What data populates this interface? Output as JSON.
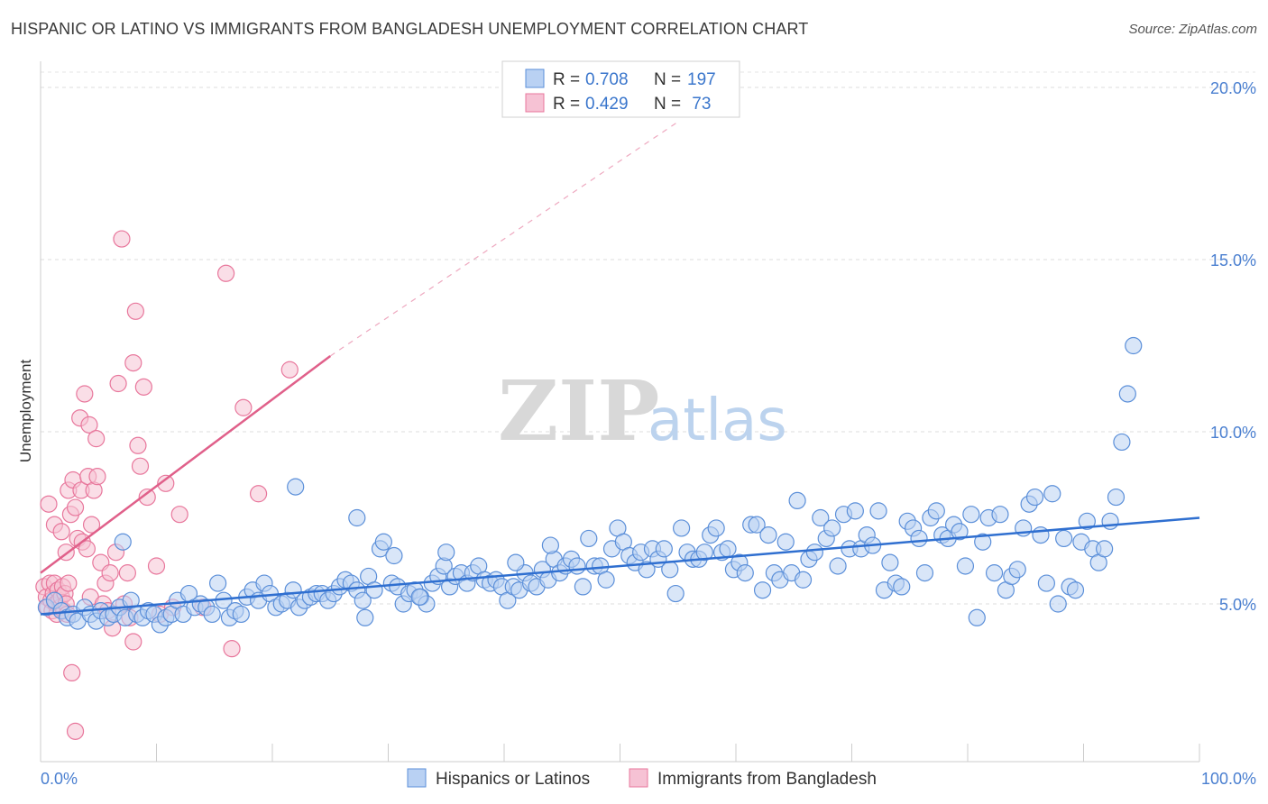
{
  "title": "HISPANIC OR LATINO VS IMMIGRANTS FROM BANGLADESH UNEMPLOYMENT CORRELATION CHART",
  "source": "Source: ZipAtlas.com",
  "watermark": {
    "zip": "ZIP",
    "atlas": "atlas"
  },
  "colors": {
    "blue": "#5b8fd9",
    "blue_fill": "#b9d1f3",
    "blue_line": "#2f6fd0",
    "pink": "#e8779c",
    "pink_fill": "#f6c2d4",
    "pink_line": "#e0608a"
  },
  "legend": {
    "r_label": "R =",
    "n_label": "N =",
    "rows": [
      {
        "r": "0.708",
        "n": "197"
      },
      {
        "r": "0.429",
        "n": " 73"
      }
    ]
  },
  "chart_data": {
    "type": "scatter",
    "title": "HISPANIC OR LATINO VS IMMIGRANTS FROM BANGLADESH UNEMPLOYMENT CORRELATION CHART",
    "xlabel": "",
    "ylabel": "Unemployment",
    "xlim": [
      0,
      100
    ],
    "ylim": [
      0,
      21
    ],
    "x_tick_labels": [
      "0.0%",
      "100.0%"
    ],
    "y_ticks": [
      5,
      10,
      15,
      20
    ],
    "y_tick_labels": [
      "5.0%",
      "10.0%",
      "15.0%",
      "20.0%"
    ],
    "grid": "horizontal dashed",
    "legend_position": "top-center",
    "series": [
      {
        "name": "Hispanics or Latinos",
        "color": "#5b8fd9",
        "trend": {
          "x": [
            0,
            100
          ],
          "y": [
            4.7,
            7.5
          ]
        },
        "points": [
          [
            0.5,
            4.9
          ],
          [
            1.2,
            5.1
          ],
          [
            1.8,
            4.8
          ],
          [
            2.3,
            4.6
          ],
          [
            2.8,
            4.7
          ],
          [
            3.2,
            4.5
          ],
          [
            3.8,
            4.9
          ],
          [
            4.3,
            4.7
          ],
          [
            4.8,
            4.5
          ],
          [
            5.2,
            4.8
          ],
          [
            5.8,
            4.6
          ],
          [
            6.3,
            4.7
          ],
          [
            6.8,
            4.9
          ],
          [
            7.3,
            4.6
          ],
          [
            7.8,
            5.1
          ],
          [
            8.3,
            4.7
          ],
          [
            8.8,
            4.6
          ],
          [
            9.3,
            4.8
          ],
          [
            9.8,
            4.7
          ],
          [
            10.3,
            4.4
          ],
          [
            10.8,
            4.6
          ],
          [
            11.3,
            4.7
          ],
          [
            11.8,
            5.1
          ],
          [
            12.3,
            4.7
          ],
          [
            12.8,
            5.3
          ],
          [
            13.3,
            4.9
          ],
          [
            13.8,
            5.0
          ],
          [
            14.3,
            4.9
          ],
          [
            14.8,
            4.7
          ],
          [
            15.3,
            5.6
          ],
          [
            15.8,
            5.1
          ],
          [
            16.3,
            4.6
          ],
          [
            16.8,
            4.8
          ],
          [
            17.3,
            4.7
          ],
          [
            17.8,
            5.2
          ],
          [
            18.3,
            5.4
          ],
          [
            18.8,
            5.1
          ],
          [
            19.3,
            5.6
          ],
          [
            19.8,
            5.3
          ],
          [
            20.3,
            4.9
          ],
          [
            20.8,
            5.0
          ],
          [
            21.3,
            5.1
          ],
          [
            21.8,
            5.4
          ],
          [
            22.3,
            4.9
          ],
          [
            22.8,
            5.1
          ],
          [
            23.3,
            5.2
          ],
          [
            23.8,
            5.3
          ],
          [
            24.3,
            5.3
          ],
          [
            24.8,
            5.1
          ],
          [
            25.3,
            5.3
          ],
          [
            25.8,
            5.5
          ],
          [
            26.3,
            5.7
          ],
          [
            26.8,
            5.6
          ],
          [
            27.3,
            5.4
          ],
          [
            27.8,
            5.1
          ],
          [
            28.3,
            5.8
          ],
          [
            28.8,
            5.4
          ],
          [
            29.3,
            6.6
          ],
          [
            29.6,
            6.8
          ],
          [
            30.3,
            5.6
          ],
          [
            30.8,
            5.5
          ],
          [
            31.3,
            5.0
          ],
          [
            31.8,
            5.3
          ],
          [
            32.3,
            5.4
          ],
          [
            32.8,
            5.2
          ],
          [
            33.3,
            5.0
          ],
          [
            33.8,
            5.6
          ],
          [
            34.3,
            5.8
          ],
          [
            34.8,
            6.1
          ],
          [
            35.3,
            5.5
          ],
          [
            35.8,
            5.8
          ],
          [
            36.3,
            5.9
          ],
          [
            36.8,
            5.6
          ],
          [
            37.3,
            5.9
          ],
          [
            37.8,
            6.1
          ],
          [
            38.3,
            5.7
          ],
          [
            38.8,
            5.6
          ],
          [
            39.3,
            5.7
          ],
          [
            39.8,
            5.5
          ],
          [
            40.3,
            5.1
          ],
          [
            40.8,
            5.5
          ],
          [
            41.3,
            5.4
          ],
          [
            41.8,
            5.9
          ],
          [
            42.3,
            5.6
          ],
          [
            42.8,
            5.5
          ],
          [
            43.3,
            6.0
          ],
          [
            43.8,
            5.7
          ],
          [
            44.3,
            6.3
          ],
          [
            44.8,
            5.9
          ],
          [
            45.3,
            6.1
          ],
          [
            45.8,
            6.3
          ],
          [
            46.3,
            6.1
          ],
          [
            46.8,
            5.5
          ],
          [
            47.3,
            6.9
          ],
          [
            47.8,
            6.1
          ],
          [
            48.3,
            6.1
          ],
          [
            48.8,
            5.7
          ],
          [
            49.3,
            6.6
          ],
          [
            49.8,
            7.2
          ],
          [
            50.3,
            6.8
          ],
          [
            50.8,
            6.4
          ],
          [
            51.3,
            6.2
          ],
          [
            51.8,
            6.5
          ],
          [
            52.3,
            6.0
          ],
          [
            52.8,
            6.6
          ],
          [
            53.3,
            6.3
          ],
          [
            53.8,
            6.6
          ],
          [
            54.3,
            6.0
          ],
          [
            54.8,
            5.3
          ],
          [
            55.3,
            7.2
          ],
          [
            55.8,
            6.5
          ],
          [
            56.3,
            6.3
          ],
          [
            56.8,
            6.3
          ],
          [
            57.3,
            6.5
          ],
          [
            57.8,
            7.0
          ],
          [
            58.3,
            7.2
          ],
          [
            58.8,
            6.5
          ],
          [
            59.3,
            6.6
          ],
          [
            59.8,
            6.0
          ],
          [
            60.3,
            6.2
          ],
          [
            60.8,
            5.9
          ],
          [
            61.3,
            7.3
          ],
          [
            61.8,
            7.3
          ],
          [
            62.3,
            5.4
          ],
          [
            62.8,
            7.0
          ],
          [
            63.3,
            5.9
          ],
          [
            63.8,
            5.7
          ],
          [
            64.3,
            6.8
          ],
          [
            64.8,
            5.9
          ],
          [
            65.3,
            8.0
          ],
          [
            65.8,
            5.7
          ],
          [
            66.3,
            6.3
          ],
          [
            66.8,
            6.5
          ],
          [
            67.3,
            7.5
          ],
          [
            67.8,
            6.9
          ],
          [
            68.3,
            7.2
          ],
          [
            68.8,
            6.1
          ],
          [
            69.3,
            7.6
          ],
          [
            69.8,
            6.6
          ],
          [
            70.3,
            7.7
          ],
          [
            70.8,
            6.6
          ],
          [
            71.3,
            7.0
          ],
          [
            71.8,
            6.7
          ],
          [
            72.3,
            7.7
          ],
          [
            72.8,
            5.4
          ],
          [
            73.3,
            6.2
          ],
          [
            73.8,
            5.6
          ],
          [
            74.3,
            5.5
          ],
          [
            74.8,
            7.4
          ],
          [
            75.3,
            7.2
          ],
          [
            75.8,
            6.9
          ],
          [
            76.3,
            5.9
          ],
          [
            76.8,
            7.5
          ],
          [
            77.3,
            7.7
          ],
          [
            77.8,
            7.0
          ],
          [
            78.3,
            6.9
          ],
          [
            78.8,
            7.3
          ],
          [
            79.3,
            7.1
          ],
          [
            79.8,
            6.1
          ],
          [
            80.3,
            7.6
          ],
          [
            80.8,
            4.6
          ],
          [
            81.3,
            6.8
          ],
          [
            81.8,
            7.5
          ],
          [
            82.3,
            5.9
          ],
          [
            82.8,
            7.6
          ],
          [
            83.3,
            5.4
          ],
          [
            83.8,
            5.8
          ],
          [
            84.3,
            6.0
          ],
          [
            84.8,
            7.2
          ],
          [
            85.3,
            7.9
          ],
          [
            85.8,
            8.1
          ],
          [
            86.3,
            7.0
          ],
          [
            86.8,
            5.6
          ],
          [
            87.3,
            8.2
          ],
          [
            87.8,
            5.0
          ],
          [
            88.3,
            6.9
          ],
          [
            88.8,
            5.5
          ],
          [
            89.3,
            5.4
          ],
          [
            89.8,
            6.8
          ],
          [
            90.3,
            7.4
          ],
          [
            90.8,
            6.6
          ],
          [
            91.3,
            6.2
          ],
          [
            91.8,
            6.6
          ],
          [
            92.3,
            7.4
          ],
          [
            92.8,
            8.1
          ],
          [
            93.3,
            9.7
          ],
          [
            93.8,
            11.1
          ],
          [
            94.3,
            12.5
          ],
          [
            7.1,
            6.8
          ],
          [
            22.0,
            8.4
          ],
          [
            27.3,
            7.5
          ],
          [
            28.0,
            4.6
          ],
          [
            30.5,
            6.4
          ],
          [
            32.7,
            5.2
          ],
          [
            35.0,
            6.5
          ],
          [
            41.0,
            6.2
          ],
          [
            44.0,
            6.7
          ]
        ]
      },
      {
        "name": "Immigrants from Bangladesh",
        "color": "#e8779c",
        "trend": {
          "x": [
            0,
            25
          ],
          "y": [
            5.9,
            12.2
          ]
        },
        "trend_extension": {
          "x": [
            25,
            55
          ],
          "y": [
            12.2,
            19.0
          ]
        },
        "points": [
          [
            0.3,
            5.5
          ],
          [
            0.5,
            5.2
          ],
          [
            0.6,
            4.9
          ],
          [
            0.8,
            5.6
          ],
          [
            0.9,
            5.1
          ],
          [
            1.0,
            4.8
          ],
          [
            1.1,
            5.3
          ],
          [
            1.2,
            5.6
          ],
          [
            1.3,
            5.0
          ],
          [
            1.4,
            4.7
          ],
          [
            1.5,
            5.4
          ],
          [
            1.6,
            5.1
          ],
          [
            1.7,
            4.9
          ],
          [
            1.8,
            5.2
          ],
          [
            1.9,
            5.5
          ],
          [
            2.0,
            4.8
          ],
          [
            2.1,
            5.3
          ],
          [
            2.2,
            5.0
          ],
          [
            2.3,
            4.7
          ],
          [
            2.4,
            5.6
          ],
          [
            0.7,
            7.9
          ],
          [
            1.2,
            7.3
          ],
          [
            1.8,
            7.1
          ],
          [
            2.2,
            6.5
          ],
          [
            2.4,
            8.3
          ],
          [
            2.6,
            7.6
          ],
          [
            2.8,
            8.6
          ],
          [
            3.0,
            7.8
          ],
          [
            3.2,
            6.9
          ],
          [
            3.4,
            10.4
          ],
          [
            3.5,
            8.3
          ],
          [
            3.6,
            6.8
          ],
          [
            3.8,
            11.1
          ],
          [
            4.0,
            6.6
          ],
          [
            4.1,
            8.7
          ],
          [
            4.2,
            10.2
          ],
          [
            4.3,
            5.2
          ],
          [
            4.4,
            7.3
          ],
          [
            4.6,
            8.3
          ],
          [
            4.8,
            9.8
          ],
          [
            4.9,
            8.7
          ],
          [
            5.2,
            6.2
          ],
          [
            5.4,
            5.0
          ],
          [
            5.6,
            5.6
          ],
          [
            5.8,
            4.8
          ],
          [
            6.0,
            5.9
          ],
          [
            6.2,
            4.3
          ],
          [
            6.5,
            6.5
          ],
          [
            6.7,
            11.4
          ],
          [
            7.0,
            15.6
          ],
          [
            7.2,
            5.0
          ],
          [
            7.5,
            5.9
          ],
          [
            7.7,
            4.6
          ],
          [
            8.0,
            12.0
          ],
          [
            8.2,
            13.5
          ],
          [
            8.4,
            9.6
          ],
          [
            8.6,
            9.0
          ],
          [
            8.9,
            11.3
          ],
          [
            9.2,
            8.1
          ],
          [
            10.0,
            6.1
          ],
          [
            10.3,
            4.7
          ],
          [
            10.8,
            8.5
          ],
          [
            11.4,
            4.9
          ],
          [
            12.0,
            7.6
          ],
          [
            14.0,
            4.9
          ],
          [
            16.0,
            14.6
          ],
          [
            16.5,
            3.7
          ],
          [
            17.5,
            10.7
          ],
          [
            18.8,
            8.2
          ],
          [
            21.5,
            11.8
          ],
          [
            2.7,
            3.0
          ],
          [
            3.0,
            1.3
          ],
          [
            8.0,
            3.9
          ]
        ]
      }
    ]
  },
  "bottom_legend": [
    {
      "label": "Hispanics or Latinos"
    },
    {
      "label": "Immigrants from Bangladesh"
    }
  ]
}
